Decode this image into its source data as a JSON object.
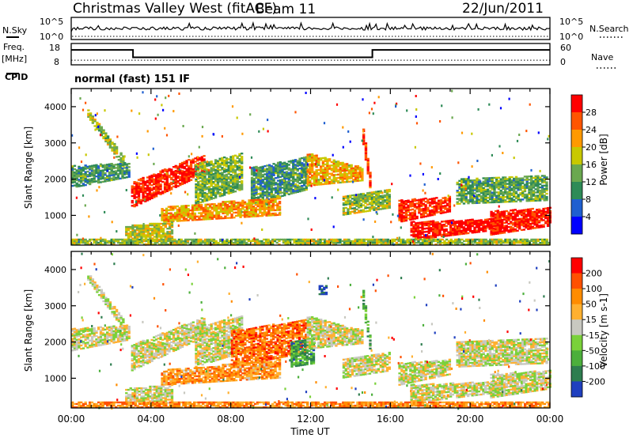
{
  "header": {
    "title": "Christmas Valley West (fitACF)",
    "beam": "Beam 11",
    "date": "22/Jun/2011"
  },
  "top_panels": {
    "nsky": {
      "label": "N.Sky",
      "ticks_left": [
        "10^5",
        "10^0"
      ],
      "ticks_right": [
        "10^5",
        "10^0"
      ],
      "right_label": "N.Search"
    },
    "freq": {
      "label_lines": [
        "Freq.",
        "[MHz]"
      ],
      "ticks_left": [
        "18",
        "8"
      ],
      "ticks_right": [
        "60",
        "0"
      ],
      "right_label": "Nave"
    },
    "cpid": {
      "label": "CPID",
      "text": "normal (fast) 151 IF"
    }
  },
  "chart_data": [
    {
      "type": "heatmap",
      "name": "power",
      "xlabel": "Time UT",
      "ylabel": "Slant Range [km]",
      "x_ticks": [
        "00:00",
        "04:00",
        "08:00",
        "12:00",
        "16:00",
        "20:00",
        "00:00"
      ],
      "y_ticks": [
        1000,
        2000,
        3000,
        4000
      ],
      "ylim": [
        180,
        4500
      ],
      "colorbar": {
        "label": "Power [dB]",
        "ticks": [
          "4",
          "8",
          "12",
          "16",
          "20",
          "24",
          "28"
        ],
        "colors": [
          "#0000ff",
          "#1f5fd0",
          "#2e8b57",
          "#6aa84f",
          "#c8c800",
          "#ff9900",
          "#ff5500",
          "#ff0000"
        ]
      },
      "echo_regions": [
        {
          "t": [
            0.8,
            2.6
          ],
          "r0": [
            3700,
            2300
          ],
          "r1": [
            3900,
            2600
          ],
          "v": 0.5
        },
        {
          "t": [
            0.0,
            2.9
          ],
          "r0": [
            1750,
            2050
          ],
          "r1": [
            2350,
            2450
          ],
          "v": 0.35
        },
        {
          "t": [
            3.0,
            6.7
          ],
          "r0": [
            1200,
            2150
          ],
          "r1": [
            1900,
            2700
          ],
          "v": 0.92
        },
        {
          "t": [
            6.2,
            8.5
          ],
          "r0": [
            1300,
            1700
          ],
          "r1": [
            2400,
            2700
          ],
          "v": 0.45
        },
        {
          "t": [
            9.0,
            11.8
          ],
          "r0": [
            1300,
            1700
          ],
          "r1": [
            2300,
            2600
          ],
          "v": 0.35
        },
        {
          "t": [
            4.5,
            10.5
          ],
          "r0": [
            800,
            1000
          ],
          "r1": [
            1200,
            1500
          ],
          "v": 0.7
        },
        {
          "t": [
            2.7,
            5.0
          ],
          "r0": [
            300,
            300
          ],
          "r1": [
            700,
            800
          ],
          "v": 0.55
        },
        {
          "t": [
            11.8,
            14.6
          ],
          "r0": [
            1800,
            1950
          ],
          "r1": [
            2700,
            2300
          ],
          "v": 0.65
        },
        {
          "t": [
            14.6,
            15.0
          ],
          "r0": [
            2900,
            1500
          ],
          "r1": [
            3400,
            1900
          ],
          "v": 0.85
        },
        {
          "t": [
            13.6,
            16.0
          ],
          "r0": [
            1000,
            1200
          ],
          "r1": [
            1500,
            1700
          ],
          "v": 0.5
        },
        {
          "t": [
            16.4,
            19.0
          ],
          "r0": [
            800,
            1100
          ],
          "r1": [
            1400,
            1500
          ],
          "v": 0.9
        },
        {
          "t": [
            17.0,
            21.5
          ],
          "r0": [
            300,
            600
          ],
          "r1": [
            800,
            900
          ],
          "v": 0.95
        },
        {
          "t": [
            21.0,
            24.0
          ],
          "r0": [
            450,
            700
          ],
          "r1": [
            1100,
            1200
          ],
          "v": 0.92
        },
        {
          "t": [
            19.3,
            23.8
          ],
          "r0": [
            1300,
            1400
          ],
          "r1": [
            2000,
            2100
          ],
          "v": 0.4
        },
        {
          "t": [
            0.0,
            24.0
          ],
          "r0": [
            180,
            180
          ],
          "r1": [
            330,
            330
          ],
          "v": 0.5
        }
      ]
    },
    {
      "type": "heatmap",
      "name": "velocity",
      "xlabel": "Time UT",
      "ylabel": "Slant Range [km]",
      "x_ticks": [
        "00:00",
        "04:00",
        "08:00",
        "12:00",
        "16:00",
        "20:00",
        "00:00"
      ],
      "y_ticks": [
        1000,
        2000,
        3000,
        4000
      ],
      "ylim": [
        180,
        4500
      ],
      "colorbar": {
        "label": "Velocity [m s-1]",
        "ticks": [
          "200",
          "100",
          "50",
          "15",
          "-15",
          "-50",
          "-100",
          "-200"
        ],
        "colors": [
          "#1f3fbf",
          "#2e7d4f",
          "#4caf3c",
          "#7ad13a",
          "#c8c8c0",
          "#ffb030",
          "#ff8c00",
          "#ff5000",
          "#ff0000"
        ]
      },
      "echo_regions": [
        {
          "t": [
            0.8,
            2.6
          ],
          "r0": [
            3700,
            2300
          ],
          "r1": [
            3900,
            2600
          ],
          "v": 0.5
        },
        {
          "t": [
            0.0,
            2.9
          ],
          "r0": [
            1750,
            2050
          ],
          "r1": [
            2350,
            2450
          ],
          "v": 0.5
        },
        {
          "t": [
            3.0,
            6.7
          ],
          "r0": [
            1200,
            2150
          ],
          "r1": [
            1900,
            2700
          ],
          "v": 0.5
        },
        {
          "t": [
            6.2,
            8.5
          ],
          "r0": [
            1300,
            1700
          ],
          "r1": [
            2400,
            2700
          ],
          "v": 0.5
        },
        {
          "t": [
            8.0,
            11.8
          ],
          "r0": [
            1300,
            1700
          ],
          "r1": [
            2300,
            2600
          ],
          "v": 0.78
        },
        {
          "t": [
            4.5,
            10.5
          ],
          "r0": [
            800,
            1000
          ],
          "r1": [
            1200,
            1500
          ],
          "v": 0.7
        },
        {
          "t": [
            11.0,
            12.2
          ],
          "r0": [
            1300,
            1400
          ],
          "r1": [
            2000,
            2100
          ],
          "v": 0.25
        },
        {
          "t": [
            2.7,
            5.0
          ],
          "r0": [
            300,
            300
          ],
          "r1": [
            700,
            800
          ],
          "v": 0.5
        },
        {
          "t": [
            11.8,
            14.6
          ],
          "r0": [
            1800,
            1950
          ],
          "r1": [
            2700,
            2300
          ],
          "v": 0.5
        },
        {
          "t": [
            14.6,
            15.0
          ],
          "r0": [
            2900,
            1500
          ],
          "r1": [
            3400,
            1900
          ],
          "v": 0.3
        },
        {
          "t": [
            13.6,
            16.0
          ],
          "r0": [
            1000,
            1200
          ],
          "r1": [
            1500,
            1700
          ],
          "v": 0.5
        },
        {
          "t": [
            16.4,
            19.0
          ],
          "r0": [
            800,
            1100
          ],
          "r1": [
            1400,
            1500
          ],
          "v": 0.5
        },
        {
          "t": [
            17.0,
            21.5
          ],
          "r0": [
            300,
            600
          ],
          "r1": [
            800,
            900
          ],
          "v": 0.5
        },
        {
          "t": [
            21.0,
            24.0
          ],
          "r0": [
            450,
            700
          ],
          "r1": [
            1100,
            1200
          ],
          "v": 0.5
        },
        {
          "t": [
            19.3,
            23.8
          ],
          "r0": [
            1300,
            1400
          ],
          "r1": [
            2000,
            2100
          ],
          "v": 0.5
        },
        {
          "t": [
            0.0,
            24.0
          ],
          "r0": [
            180,
            180
          ],
          "r1": [
            330,
            330
          ],
          "v": 0.72
        },
        {
          "t": [
            12.4,
            12.8
          ],
          "r0": [
            3300,
            3300
          ],
          "r1": [
            3550,
            3550
          ],
          "v": 0.02
        }
      ]
    }
  ],
  "freq_steps": {
    "t": [
      0,
      3.1,
      3.1,
      15.1,
      15.1,
      24
    ],
    "mhz": [
      15,
      15,
      11.5,
      11.5,
      15,
      15
    ]
  },
  "nave_steps": {
    "t": [
      0,
      24
    ],
    "value": [
      13,
      13
    ]
  }
}
